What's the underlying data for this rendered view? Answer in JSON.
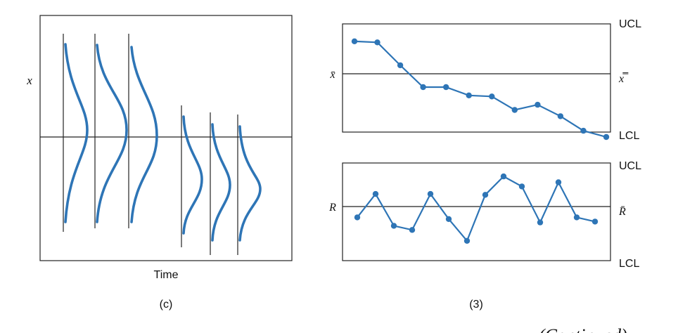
{
  "colors": {
    "accent": "#2e75b6",
    "line": "#222222",
    "text": "#111111"
  },
  "panel_c": {
    "y_axis_label": "x",
    "x_axis_label": "Time",
    "caption": "(c)",
    "groups": [
      {
        "name": "large-variance",
        "count": 3
      },
      {
        "name": "small-variance",
        "count": 3
      }
    ]
  },
  "panel_3": {
    "caption": "(3)",
    "xbar_chart": {
      "center_label_left": "x̄",
      "center_label_right": "x̿",
      "ucl_label": "UCL",
      "lcl_label": "LCL",
      "ylim": [
        0,
        10
      ],
      "center": 5,
      "points": [
        9.2,
        9.1,
        6.9,
        4.8,
        4.8,
        4.0,
        3.9,
        2.6,
        3.1,
        2.0,
        0.6,
        0.0
      ]
    },
    "r_chart": {
      "center_label_left": "R",
      "center_label_right": "R̄",
      "ucl_label": "UCL",
      "lcl_label": "LCL",
      "ylim": [
        0,
        10
      ],
      "center": 5.5,
      "points": [
        4.5,
        7.3,
        3.5,
        3.0,
        7.3,
        4.3,
        1.7,
        7.2,
        9.4,
        8.2,
        3.9,
        8.7,
        4.5,
        4.0
      ]
    }
  },
  "footer": {
    "text": "(Continued)"
  }
}
